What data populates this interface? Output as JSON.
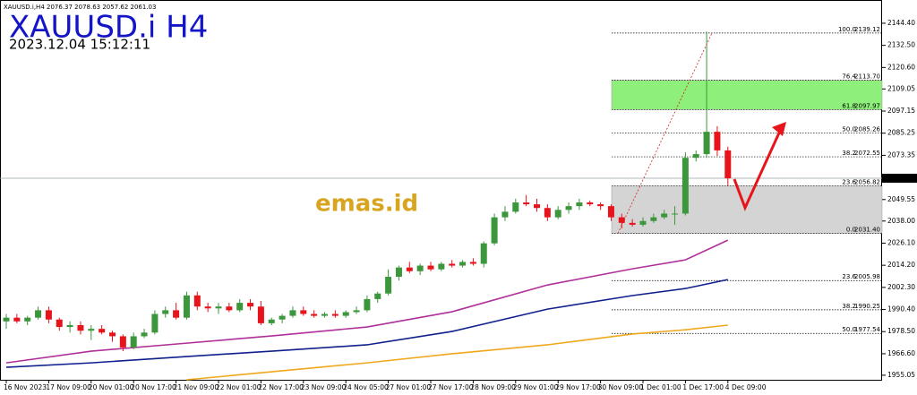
{
  "chart_data": {
    "type": "candlestick",
    "symbol_line": "XAUUSD.i,H4  2076.37 2078.63 2057.62 2061.03",
    "title": "XAUUSD.i H4",
    "timestamp": "2023.12.04 15:12:11",
    "watermark": "emas.id",
    "categories": [
      "16 Nov 2023",
      null,
      null,
      null,
      "17 Nov 09:00",
      null,
      null,
      null,
      "20 Nov 01:00",
      null,
      null,
      null,
      "20 Nov 17:00",
      null,
      null,
      null,
      "21 Nov 09:00",
      null,
      null,
      null,
      "22 Nov 01:00",
      null,
      null,
      null,
      "22 Nov 17:00",
      null,
      null,
      null,
      "23 Nov 09:00",
      null,
      null,
      null,
      "24 Nov 05:00",
      null,
      null,
      null,
      "27 Nov 01:00",
      null,
      null,
      null,
      "27 Nov 17:00",
      null,
      null,
      null,
      "28 Nov 09:00",
      null,
      null,
      null,
      "29 Nov 01:00",
      null,
      null,
      null,
      "29 Nov 17:00",
      null,
      null,
      null,
      "30 Nov 09:00",
      null,
      null,
      null,
      "1 Dec 01:00",
      null,
      null,
      null,
      "1 Dec 17:00",
      null,
      null,
      null,
      "4 Dec 09:00"
    ],
    "open": [
      1984,
      1986,
      1984,
      1986,
      1990,
      1985,
      1981,
      1982,
      1979,
      1980,
      1978,
      1976,
      1970,
      1976,
      1978,
      1988,
      1990,
      1986,
      1998,
      1992,
      1991,
      1992,
      1990,
      1994,
      1992,
      1983,
      1985,
      1987,
      1990,
      1988,
      1987,
      1988,
      1987,
      1989,
      1990,
      1996,
      1999,
      2008,
      2013,
      2011,
      2014,
      2012,
      2015,
      2014,
      2016,
      2015,
      2026,
      2040,
      2043,
      2048,
      2047,
      2045,
      2040,
      2044,
      2046,
      2048,
      2047,
      2046,
      2040,
      2037,
      2036,
      2038,
      2040,
      2042,
      2042,
      2072,
      2074,
      2086,
      2076
    ],
    "high": [
      1988,
      1988,
      1987,
      1992,
      1992,
      1986,
      1984,
      1984,
      1982,
      1982,
      1979,
      1977,
      1978,
      1980,
      1990,
      1992,
      1994,
      2000,
      2000,
      1994,
      1994,
      1994,
      1996,
      1996,
      1995,
      1986,
      1988,
      1992,
      1992,
      1990,
      1989,
      1990,
      1990,
      1992,
      1998,
      2000,
      2012,
      2014,
      2016,
      2015,
      2016,
      2016,
      2017,
      2017,
      2018,
      2027,
      2042,
      2046,
      2050,
      2052,
      2050,
      2047,
      2046,
      2048,
      2050,
      2049,
      2048,
      2047,
      2042,
      2039,
      2040,
      2042,
      2044,
      2046,
      2075,
      2076,
      2140,
      2089,
      2078
    ],
    "low": [
      1980,
      1983,
      1982,
      1985,
      1983,
      1979,
      1978,
      1977,
      1974,
      1977,
      1973,
      1968,
      1969,
      1975,
      1977,
      1986,
      1985,
      1985,
      1990,
      1989,
      1988,
      1989,
      1989,
      1990,
      1982,
      1982,
      1983,
      1986,
      1987,
      1986,
      1986,
      1986,
      1986,
      1988,
      1989,
      1994,
      1998,
      2006,
      2010,
      2009,
      2011,
      2011,
      2013,
      2013,
      2014,
      2013,
      2025,
      2038,
      2042,
      2046,
      2043,
      2038,
      2039,
      2042,
      2044,
      2046,
      2044,
      2038,
      2034,
      2035,
      2035,
      2037,
      2039,
      2036,
      2041,
      2070,
      2072,
      2073,
      2057
    ],
    "close": [
      1986,
      1984,
      1986,
      1990,
      1985,
      1981,
      1982,
      1979,
      1980,
      1978,
      1976,
      1970,
      1976,
      1978,
      1988,
      1990,
      1986,
      1998,
      1992,
      1991,
      1992,
      1990,
      1994,
      1992,
      1983,
      1985,
      1987,
      1990,
      1988,
      1987,
      1988,
      1987,
      1989,
      1990,
      1996,
      1999,
      2008,
      2013,
      2011,
      2014,
      2012,
      2015,
      2014,
      2016,
      2015,
      2026,
      2040,
      2043,
      2048,
      2047,
      2045,
      2040,
      2044,
      2046,
      2048,
      2047,
      2046,
      2040,
      2037,
      2036,
      2038,
      2040,
      2042,
      2042,
      2072,
      2074,
      2086,
      2076,
      2061
    ],
    "up_color": "#3c963c",
    "down_color": "#e8141c",
    "moving_averages": [
      {
        "color": "#b0309a",
        "x": [
          0,
          8,
          17,
          25,
          34,
          42,
          51,
          59,
          64,
          68
        ],
        "values": [
          1961.7,
          1968.0,
          1972.3,
          1976.2,
          1981.0,
          1989.2,
          2003.6,
          2012.3,
          2017.1,
          2027.7
        ]
      },
      {
        "color": "#10208c",
        "x": [
          0,
          8,
          17,
          25,
          34,
          42,
          51,
          59,
          64,
          68
        ],
        "values": [
          1959.3,
          1961.7,
          1965.1,
          1968.0,
          1971.4,
          1978.6,
          1990.6,
          1997.9,
          2001.7,
          2006.5
        ]
      },
      {
        "color": "#f0a81c",
        "x": [
          17,
          25,
          34,
          42,
          51,
          59,
          64,
          68
        ],
        "values": [
          1952.6,
          1956.9,
          1961.7,
          1966.6,
          1971.4,
          1977.2,
          1979.5,
          1982.0
        ]
      }
    ],
    "fib_levels": [
      {
        "ratio": "100.0",
        "price": 2139.12
      },
      {
        "ratio": "76.4",
        "price": {
          "value": 2113.7,
          "label": "2113.70"
        }
      },
      {
        "ratio": "61.8",
        "price": 2097.97
      },
      {
        "ratio": "50.0",
        "price": 2085.26
      },
      {
        "ratio": "38.2",
        "price": 2072.55
      },
      {
        "ratio": "23.6",
        "price": 2056.82
      },
      {
        "ratio": "0.0",
        "price": {
          "value": 2031.4,
          "label": "2031.40"
        }
      },
      {
        "ratio": "23.6",
        "price": 2005.98
      },
      {
        "ratio": "38.2",
        "price": 1990.25
      },
      {
        "ratio": "50.0",
        "price": 1977.54
      }
    ],
    "current_price": 2061.03,
    "ylim": [
      1952.6,
      2156.9
    ],
    "yticks": [
      {
        "value": 2144.4,
        "label": "2144.40"
      },
      {
        "value": 2132.5,
        "label": "2132.50"
      },
      {
        "value": 2120.6,
        "label": "2120.60"
      },
      2109.05,
      2097.15,
      2085.25,
      2073.35,
      2049.55,
      {
        "value": 2038,
        "label": "2038.00"
      },
      {
        "value": 2026.1,
        "label": "2026.10"
      },
      {
        "value": 2014.2,
        "label": "2014.20"
      },
      {
        "value": 2002.3,
        "label": "2002.30"
      },
      {
        "value": 1990.4,
        "label": "1990.40"
      },
      {
        "value": 1978.5,
        "label": "1978.50"
      },
      {
        "value": 1966.6,
        "label": "1966.60"
      },
      1955.05
    ]
  }
}
